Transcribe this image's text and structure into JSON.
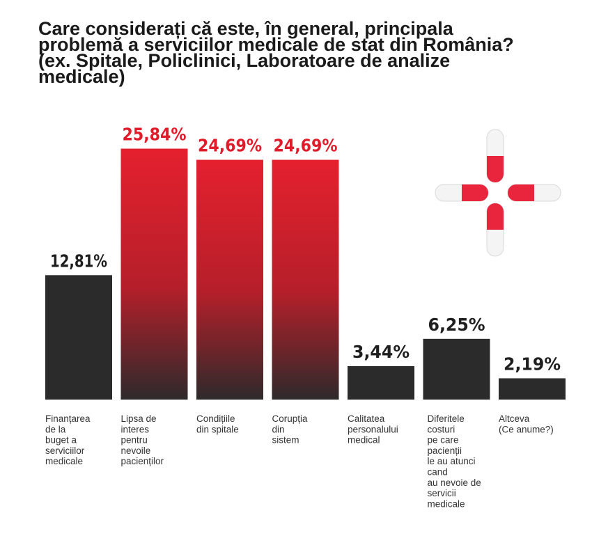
{
  "title_lines": [
    "Care considerați că este, în general, principala",
    "problemă a serviciilor medicale de stat din România?",
    "(ex. Spitale, Policlinici, Laboratoare de analize",
    "medicale)"
  ],
  "colors": {
    "dark": "#2b2b2b",
    "red": "#e5202e",
    "red_label": "#e01b2a",
    "dark_label": "#1f1f1f",
    "pill_red": "#e8253c",
    "pill_white": "#f4f4f4"
  },
  "decoration": {
    "icon": "medical-pills-cross-icon"
  },
  "chart_data": {
    "type": "bar",
    "ylim": [
      0,
      27
    ],
    "grid": false,
    "legend": "none",
    "categories": [
      [
        "Finanțarea",
        "de la",
        "buget a",
        "serviciilor",
        "medicale"
      ],
      [
        "Lipsa de",
        "interes",
        "pentru",
        "nevoile",
        "pacienților"
      ],
      [
        "Condițiile",
        "din spitale"
      ],
      [
        "Corupția",
        "din",
        "sistem"
      ],
      [
        "Calitatea",
        "personalului",
        "medical"
      ],
      [
        "Diferitele",
        "costuri",
        "pe care",
        "pacienții",
        "le au atunci",
        "cand",
        "au nevoie de",
        "servicii",
        "medicale"
      ],
      [
        "Altceva",
        "(Ce anume?)"
      ]
    ],
    "values": [
      12.81,
      25.84,
      24.69,
      24.69,
      3.44,
      6.25,
      2.19
    ],
    "value_labels": [
      "12,81%",
      "25,84%",
      "24,69%",
      "24,69%",
      "3,44%",
      "6,25%",
      "2,19%"
    ],
    "highlight": [
      false,
      true,
      true,
      true,
      false,
      false,
      false
    ]
  }
}
